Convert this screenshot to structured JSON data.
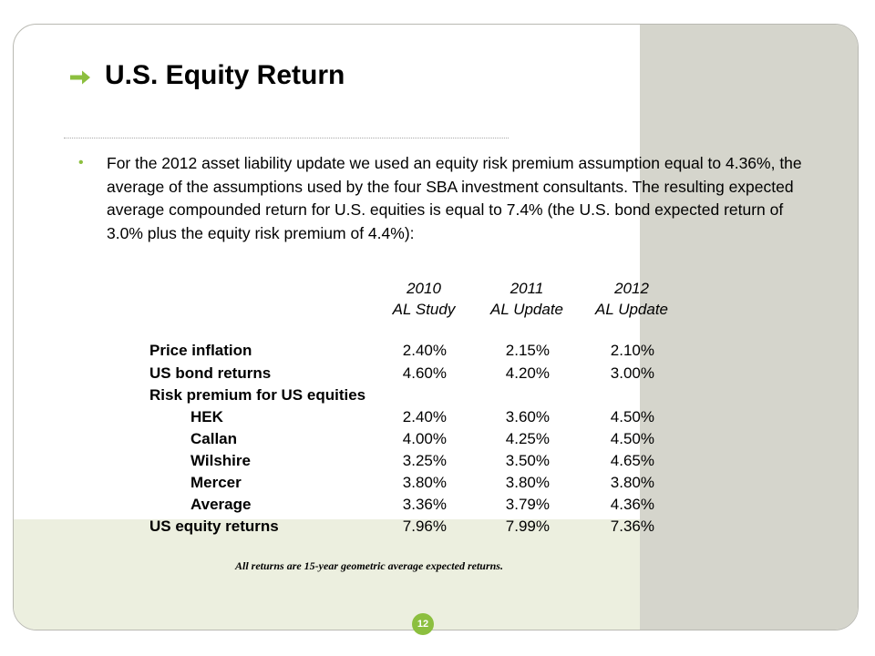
{
  "slide": {
    "title": "U.S. Equity Return",
    "bullet": "For the 2012 asset liability update we used an equity risk premium assumption equal to 4.36%, the average of the assumptions used by the four SBA investment consultants.  The resulting expected average compounded return for U.S. equities is equal to 7.4% (the U.S. bond expected return of 3.0% plus the equity risk premium of 4.4%):",
    "footnote": "All returns are 15-year geometric average expected returns.",
    "page_number": "12",
    "accent_color": "#8cbf3f"
  },
  "table": {
    "columns": [
      {
        "year": "2010",
        "label": "AL Study"
      },
      {
        "year": "2011",
        "label": "AL Update"
      },
      {
        "year": "2012",
        "label": "AL Update"
      }
    ],
    "rows": [
      {
        "label": "Price inflation",
        "values": [
          "2.40%",
          "2.15%",
          "2.10%"
        ]
      },
      {
        "label": "US bond returns",
        "values": [
          "4.60%",
          "4.20%",
          "3.00%"
        ]
      },
      {
        "label": "Risk premium for US equities",
        "values": [
          "",
          "",
          ""
        ]
      },
      {
        "label": "HEK",
        "values": [
          "2.40%",
          "3.60%",
          "4.50%"
        ]
      },
      {
        "label": "Callan",
        "values": [
          "4.00%",
          "4.25%",
          "4.50%"
        ]
      },
      {
        "label": "Wilshire",
        "values": [
          "3.25%",
          "3.50%",
          "4.65%"
        ]
      },
      {
        "label": "Mercer",
        "values": [
          "3.80%",
          "3.80%",
          "3.80%"
        ]
      },
      {
        "label": "Average",
        "values": [
          "3.36%",
          "3.79%",
          "4.36%"
        ]
      },
      {
        "label": "US equity returns",
        "values": [
          "7.96%",
          "7.99%",
          "7.36%"
        ]
      }
    ]
  }
}
